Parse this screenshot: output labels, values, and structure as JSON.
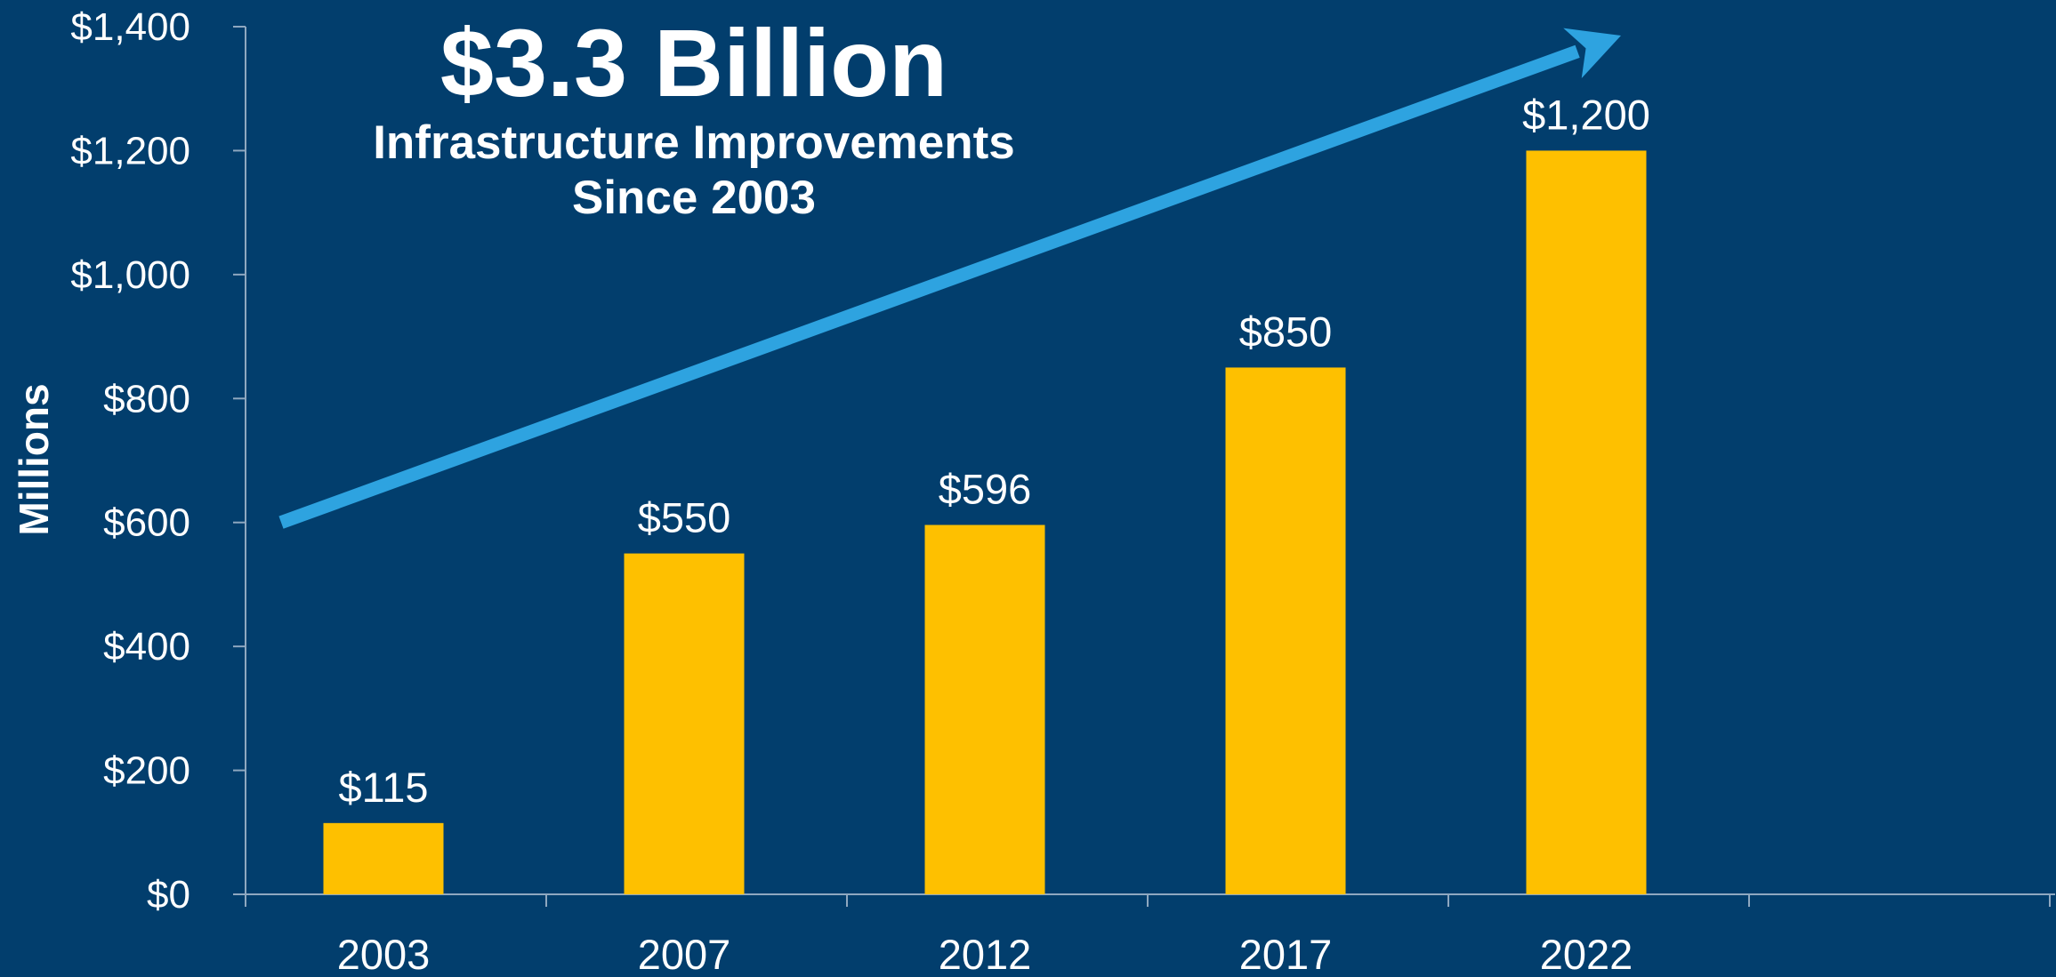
{
  "chart_data": {
    "type": "bar",
    "title": "$3.3 Billion",
    "subtitle_lines": [
      "Infrastructure Improvements",
      "Since 2003"
    ],
    "ylabel": "Millions",
    "xlabel": "",
    "categories": [
      "2003",
      "2007",
      "2012",
      "2017",
      "2022"
    ],
    "values": [
      115,
      550,
      596,
      850,
      1200
    ],
    "data_labels": [
      "$115",
      "$550",
      "$596",
      "$850",
      "$1,200"
    ],
    "ylim": [
      0,
      1400
    ],
    "yticks": [
      0,
      200,
      400,
      600,
      800,
      1000,
      1200,
      1400
    ],
    "ytick_labels": [
      "$0",
      "$200",
      "$400",
      "$600",
      "$800",
      "$1,000",
      "$1,200",
      "$1,400"
    ],
    "grid": false,
    "legend": "none",
    "trend_arrow": {
      "from": [
        2003,
        600
      ],
      "to": [
        2022,
        1400
      ]
    }
  },
  "colors": {
    "background": "#023e6d",
    "bar": "#fec000",
    "arrow": "#2ea3e0",
    "axis": "#8fa8c0",
    "text": "#ffffff"
  }
}
